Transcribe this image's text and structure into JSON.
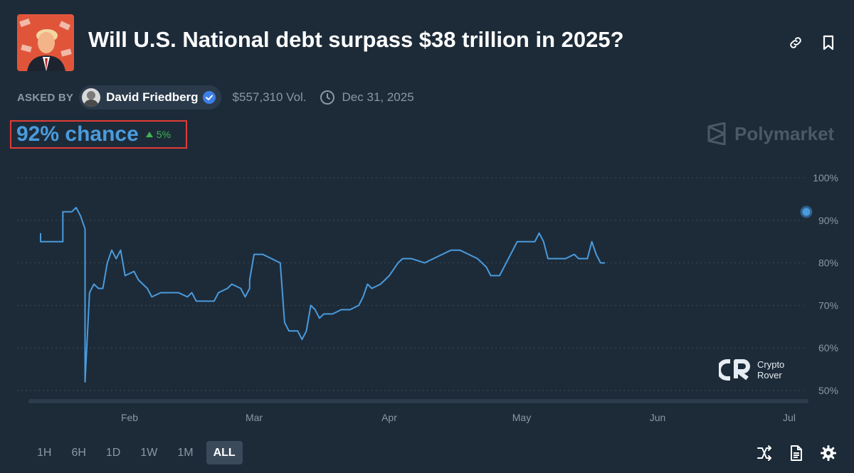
{
  "market": {
    "title": "Will U.S. National debt surpass $38 trillion in 2025?",
    "asked_by_label": "ASKED BY",
    "author": "David Friedberg",
    "volume": "$557,310 Vol.",
    "end_date": "Dec 31, 2025",
    "chance": "92% chance",
    "delta": "5%",
    "brand": "Polymarket",
    "watermark_line1": "Crypto",
    "watermark_line2": "Rover"
  },
  "icons": {
    "link": "link-icon",
    "bookmark": "bookmark-icon",
    "clock": "clock-icon",
    "verified": "verified-badge-icon",
    "shuffle": "shuffle-icon",
    "document": "document-icon",
    "settings": "gear-icon"
  },
  "colors": {
    "background": "#1d2b39",
    "line": "#4a9bdc",
    "positive": "#3fb451",
    "highlight_box": "#e23b36"
  },
  "range_buttons": [
    "1H",
    "6H",
    "1D",
    "1W",
    "1M",
    "ALL"
  ],
  "active_range": "ALL",
  "chart_data": {
    "type": "line",
    "title": "",
    "xlabel": "",
    "ylabel": "",
    "x_ticks": [
      "Feb",
      "Mar",
      "Apr",
      "May",
      "Jun",
      "Jul"
    ],
    "y_ticks": [
      "50%",
      "60%",
      "70%",
      "80%",
      "90%",
      "100%"
    ],
    "ylim": [
      50,
      100
    ],
    "grid": "horizontal dotted",
    "current_value": 92,
    "series": [
      {
        "values": [
          [
            "2025-01-12",
            87
          ],
          [
            "2025-01-12",
            85
          ],
          [
            "2025-01-17",
            85
          ],
          [
            "2025-01-17",
            92
          ],
          [
            "2025-01-19",
            92
          ],
          [
            "2025-01-20",
            93
          ],
          [
            "2025-01-21",
            91
          ],
          [
            "2025-01-22",
            88
          ],
          [
            "2025-01-22",
            52
          ],
          [
            "2025-01-23",
            73
          ],
          [
            "2025-01-24",
            75
          ],
          [
            "2025-01-25",
            74
          ],
          [
            "2025-01-26",
            74
          ],
          [
            "2025-01-27",
            80
          ],
          [
            "2025-01-28",
            83
          ],
          [
            "2025-01-29",
            81
          ],
          [
            "2025-01-30",
            83
          ],
          [
            "2025-01-31",
            77
          ],
          [
            "2025-02-02",
            78
          ],
          [
            "2025-02-03",
            76
          ],
          [
            "2025-02-05",
            74
          ],
          [
            "2025-02-06",
            72
          ],
          [
            "2025-02-08",
            73
          ],
          [
            "2025-02-10",
            73
          ],
          [
            "2025-02-12",
            73
          ],
          [
            "2025-02-14",
            72
          ],
          [
            "2025-02-15",
            73
          ],
          [
            "2025-02-16",
            71
          ],
          [
            "2025-02-18",
            71
          ],
          [
            "2025-02-20",
            71
          ],
          [
            "2025-02-21",
            73
          ],
          [
            "2025-02-23",
            74
          ],
          [
            "2025-02-24",
            75
          ],
          [
            "2025-02-26",
            74
          ],
          [
            "2025-02-27",
            72
          ],
          [
            "2025-02-28",
            74
          ],
          [
            "2025-02-28",
            76
          ],
          [
            "2025-03-01",
            82
          ],
          [
            "2025-03-03",
            82
          ],
          [
            "2025-03-05",
            81
          ],
          [
            "2025-03-07",
            80
          ],
          [
            "2025-03-08",
            66
          ],
          [
            "2025-03-09",
            64
          ],
          [
            "2025-03-11",
            64
          ],
          [
            "2025-03-12",
            62
          ],
          [
            "2025-03-13",
            64
          ],
          [
            "2025-03-14",
            70
          ],
          [
            "2025-03-15",
            69
          ],
          [
            "2025-03-16",
            67
          ],
          [
            "2025-03-17",
            68
          ],
          [
            "2025-03-19",
            68
          ],
          [
            "2025-03-21",
            69
          ],
          [
            "2025-03-23",
            69
          ],
          [
            "2025-03-25",
            70
          ],
          [
            "2025-03-26",
            72
          ],
          [
            "2025-03-27",
            75
          ],
          [
            "2025-03-28",
            74
          ],
          [
            "2025-03-30",
            75
          ],
          [
            "2025-03-31",
            76
          ],
          [
            "2025-04-01",
            77
          ],
          [
            "2025-04-03",
            80
          ],
          [
            "2025-04-04",
            81
          ],
          [
            "2025-04-06",
            81
          ],
          [
            "2025-04-09",
            80
          ],
          [
            "2025-04-11",
            81
          ],
          [
            "2025-04-13",
            82
          ],
          [
            "2025-04-15",
            83
          ],
          [
            "2025-04-17",
            83
          ],
          [
            "2025-04-19",
            82
          ],
          [
            "2025-04-21",
            81
          ],
          [
            "2025-04-23",
            79
          ],
          [
            "2025-04-24",
            77
          ],
          [
            "2025-04-26",
            77
          ],
          [
            "2025-04-27",
            79
          ],
          [
            "2025-04-28",
            81
          ],
          [
            "2025-04-29",
            83
          ],
          [
            "2025-04-30",
            85
          ],
          [
            "2025-05-02",
            85
          ],
          [
            "2025-05-04",
            85
          ],
          [
            "2025-05-05",
            87
          ],
          [
            "2025-05-06",
            85
          ],
          [
            "2025-05-07",
            81
          ],
          [
            "2025-05-09",
            81
          ],
          [
            "2025-05-11",
            81
          ],
          [
            "2025-05-13",
            82
          ],
          [
            "2025-05-14",
            81
          ],
          [
            "2025-05-16",
            81
          ],
          [
            "2025-05-17",
            85
          ],
          [
            "2025-05-18",
            82
          ],
          [
            "2025-05-19",
            80
          ],
          [
            "2025-05-20",
            80
          ]
        ]
      }
    ]
  }
}
